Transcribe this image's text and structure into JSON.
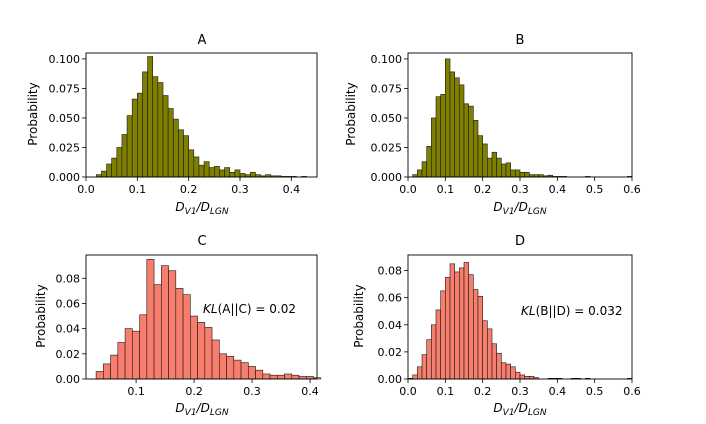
{
  "chart_data": [
    {
      "type": "bar",
      "title": "A",
      "xlabel_main": "D",
      "xlabel_sub_num": "V1",
      "xlabel_slash": "/D",
      "xlabel_sub_den": "LGN",
      "ylabel": "Probability",
      "xlim": [
        0.0,
        0.45
      ],
      "ylim": [
        0.0,
        0.105
      ],
      "xticks": [
        0.0,
        0.1,
        0.2,
        0.3,
        0.4
      ],
      "xtick_labels": [
        "0.0",
        "0.1",
        "0.2",
        "0.3",
        "0.4"
      ],
      "yticks": [
        0.0,
        0.025,
        0.05,
        0.075,
        0.1
      ],
      "ytick_labels": [
        "0.000",
        "0.025",
        "0.050",
        "0.075",
        "0.100"
      ],
      "bin_start": 0.02,
      "bin_width": 0.01,
      "values": [
        0.002,
        0.005,
        0.011,
        0.016,
        0.025,
        0.036,
        0.052,
        0.066,
        0.071,
        0.089,
        0.102,
        0.085,
        0.08,
        0.069,
        0.058,
        0.049,
        0.04,
        0.035,
        0.023,
        0.017,
        0.01,
        0.013,
        0.008,
        0.009,
        0.006,
        0.008,
        0.004,
        0.006,
        0.003,
        0.002,
        0.004,
        0.002,
        0.001,
        0.002,
        0.001,
        0.001,
        0.0005,
        0.0005,
        0.0005,
        0.0,
        0.0005
      ],
      "bar_color": "#7f7f00",
      "annotation": null
    },
    {
      "type": "bar",
      "title": "B",
      "xlabel_main": "D",
      "xlabel_sub_num": "V1",
      "xlabel_slash": "/D",
      "xlabel_sub_den": "LGN",
      "ylabel": "Probability",
      "xlim": [
        0.0,
        0.6
      ],
      "ylim": [
        0.0,
        0.105
      ],
      "xticks": [
        0.0,
        0.1,
        0.2,
        0.3,
        0.4,
        0.5,
        0.6
      ],
      "xtick_labels": [
        "0.0",
        "0.1",
        "0.2",
        "0.3",
        "0.4",
        "0.5",
        "0.6"
      ],
      "yticks": [
        0.0,
        0.025,
        0.05,
        0.075,
        0.1
      ],
      "ytick_labels": [
        "0.000",
        "0.025",
        "0.050",
        "0.075",
        "0.100"
      ],
      "bin_start": 0.0,
      "bin_width": 0.0125,
      "values": [
        0.0,
        0.002,
        0.006,
        0.013,
        0.026,
        0.05,
        0.068,
        0.07,
        0.1,
        0.089,
        0.084,
        0.078,
        0.062,
        0.06,
        0.048,
        0.035,
        0.028,
        0.016,
        0.021,
        0.016,
        0.011,
        0.012,
        0.006,
        0.006,
        0.004,
        0.004,
        0.002,
        0.002,
        0.002,
        0.001,
        0.0015,
        0.0005,
        0.0005,
        0.0005,
        0.0,
        0.0,
        0.0,
        0.0,
        0.0005,
        0.0,
        0.0,
        0.0,
        0.0,
        0.0,
        0.0,
        0.0,
        0.0,
        0.0005
      ],
      "bar_color": "#7f7f00",
      "annotation": null
    },
    {
      "type": "bar",
      "title": "C",
      "xlabel_main": "D",
      "xlabel_sub_num": "V1",
      "xlabel_slash": "/D",
      "xlabel_sub_den": "LGN",
      "ylabel": "Probability",
      "xlim": [
        0.0136,
        0.412
      ],
      "ylim": [
        0.0,
        0.0985
      ],
      "xticks": [
        0.1,
        0.2,
        0.3,
        0.4
      ],
      "xtick_labels": [
        "0.1",
        "0.2",
        "0.3",
        "0.4"
      ],
      "yticks": [
        0.0,
        0.02,
        0.04,
        0.06,
        0.08
      ],
      "ytick_labels": [
        "0.00",
        "0.02",
        "0.04",
        "0.06",
        "0.08"
      ],
      "bin_start": 0.031,
      "bin_width": 0.0125,
      "values": [
        0.006,
        0.012,
        0.019,
        0.029,
        0.04,
        0.038,
        0.051,
        0.095,
        0.075,
        0.09,
        0.086,
        0.072,
        0.067,
        0.05,
        0.045,
        0.041,
        0.031,
        0.02,
        0.018,
        0.015,
        0.013,
        0.01,
        0.007,
        0.004,
        0.003,
        0.003,
        0.004,
        0.003,
        0.002,
        0.002,
        0.001
      ],
      "bar_color": "#f77d6c",
      "annotation": {
        "prefix": "KL",
        "args": "(A||C)",
        "value": " = 0.02"
      }
    },
    {
      "type": "bar",
      "title": "D",
      "xlabel_main": "D",
      "xlabel_sub_num": "V1",
      "xlabel_slash": "/D",
      "xlabel_sub_den": "LGN",
      "ylabel": "Probability",
      "xlim": [
        0.0,
        0.6
      ],
      "ylim": [
        0.0,
        0.0915
      ],
      "xticks": [
        0.0,
        0.1,
        0.2,
        0.3,
        0.4,
        0.5,
        0.6
      ],
      "xtick_labels": [
        "0.0",
        "0.1",
        "0.2",
        "0.3",
        "0.4",
        "0.5",
        "0.6"
      ],
      "yticks": [
        0.0,
        0.02,
        0.04,
        0.06,
        0.08
      ],
      "ytick_labels": [
        "0.00",
        "0.02",
        "0.04",
        "0.06",
        "0.08"
      ],
      "bin_start": 0.0,
      "bin_width": 0.0125,
      "values": [
        0.0005,
        0.003,
        0.009,
        0.018,
        0.029,
        0.04,
        0.051,
        0.065,
        0.075,
        0.085,
        0.079,
        0.082,
        0.086,
        0.077,
        0.066,
        0.061,
        0.043,
        0.037,
        0.026,
        0.019,
        0.012,
        0.011,
        0.009,
        0.005,
        0.003,
        0.002,
        0.002,
        0.001,
        0.0,
        0.0,
        0.0005,
        0.0005,
        0.0005,
        0.0,
        0.0,
        0.0005,
        0.0005,
        0.0,
        0.0005,
        0.0,
        0.0,
        0.0,
        0.0,
        0.0,
        0.0,
        0.0,
        0.0,
        0.0005
      ],
      "bar_color": "#f77d6c",
      "annotation": {
        "prefix": "KL",
        "args": "(B||D)",
        "value": " = 0.032"
      }
    }
  ]
}
